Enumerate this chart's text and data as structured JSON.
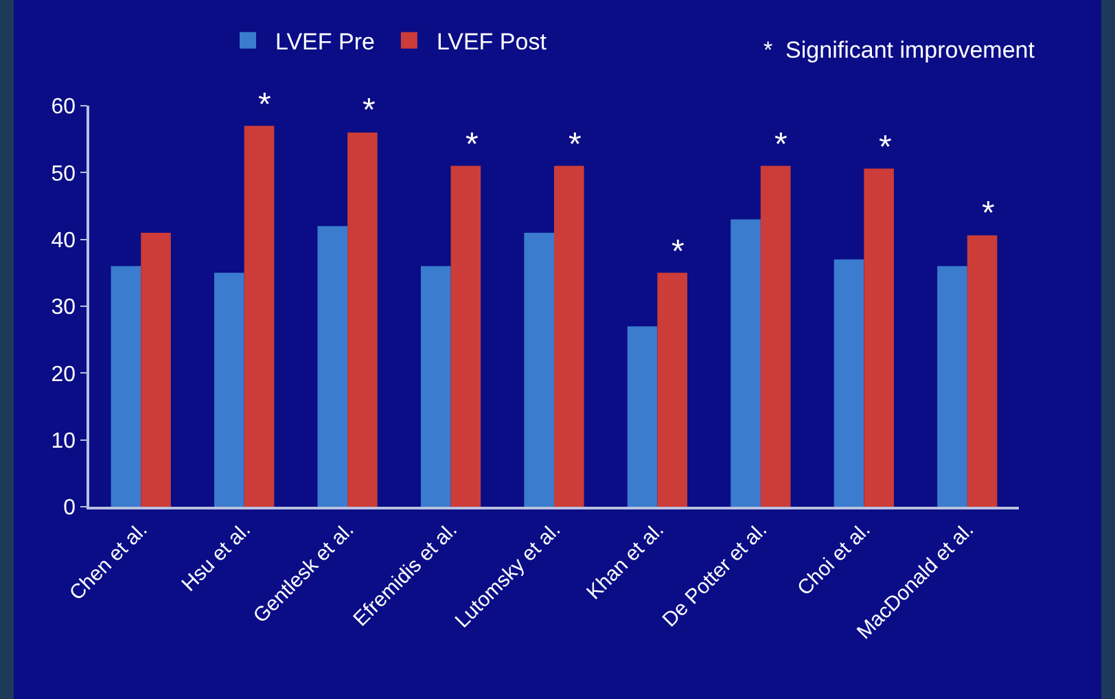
{
  "chart_data": {
    "type": "bar",
    "categories": [
      "Chen et al.",
      "Hsu et al.",
      "Gentlesk et al.",
      "Efremidis et al.",
      "Lutomsky et al.",
      "Khan et al.",
      "De Potter et al.",
      "Choi et al.",
      "MacDonald et al."
    ],
    "series": [
      {
        "name": "LVEF Pre",
        "color": "#3b7ccf",
        "values": [
          36,
          35,
          42,
          36,
          41,
          27,
          43,
          37,
          36
        ]
      },
      {
        "name": "LVEF Post",
        "color": "#cc3c38",
        "values": [
          41,
          57,
          56,
          51,
          51,
          35,
          51,
          50.6,
          40.6
        ]
      }
    ],
    "ylim": [
      0,
      60
    ],
    "yticks": [
      0,
      10,
      20,
      30,
      40,
      50,
      60
    ],
    "grid": false,
    "legend": "top",
    "annotations": [
      {
        "text": "*",
        "x": "Hsu et al.",
        "y": 57
      },
      {
        "text": "*",
        "x": "Gentlesk et al.",
        "y": 56
      },
      {
        "text": "*",
        "x": "Efremidis et al.",
        "y": 51
      },
      {
        "text": "*",
        "x": "Lutomsky et al.",
        "y": 51
      },
      {
        "text": "*",
        "x": "Khan et al.",
        "y": 35
      },
      {
        "text": "*",
        "x": "De Potter et al.",
        "y": 51
      },
      {
        "text": "*",
        "x": "Choi et al.",
        "y": 50.6
      },
      {
        "text": "*",
        "x": "MacDonald et al.",
        "y": 40.6
      },
      "*  Significant improvement"
    ]
  }
}
